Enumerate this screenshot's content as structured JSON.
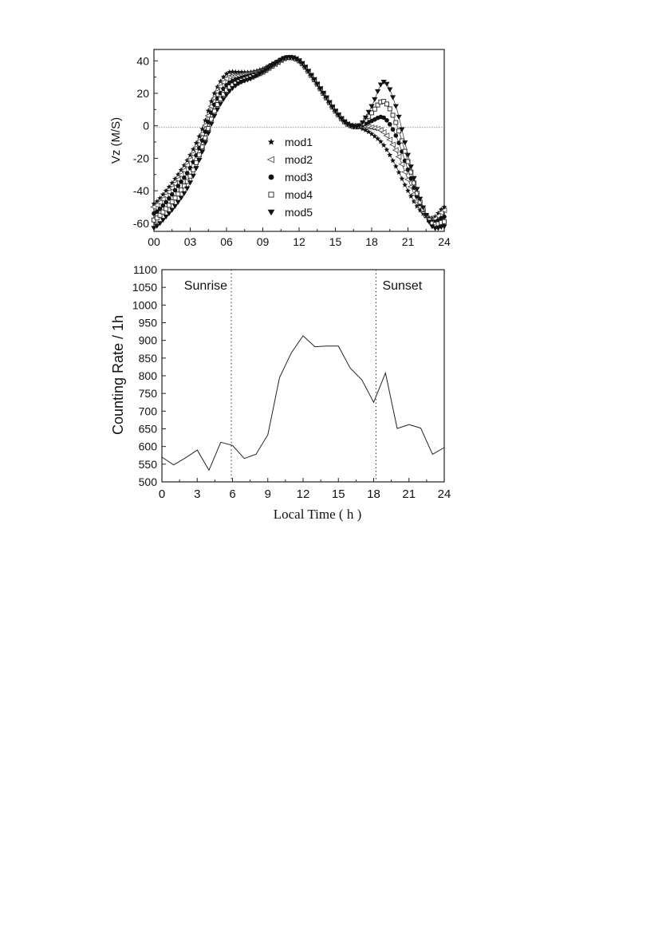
{
  "chart_data": [
    {
      "type": "scatter",
      "ylabel": "Vz (M/S)",
      "xlabel": "",
      "xlim": [
        0,
        24
      ],
      "ylim": [
        -65,
        47
      ],
      "x_ticks": [
        "00",
        "03",
        "06",
        "09",
        "12",
        "15",
        "18",
        "21",
        "24"
      ],
      "x_tick_values": [
        0,
        3,
        6,
        9,
        12,
        15,
        18,
        21,
        24
      ],
      "y_ticks": [
        "-60",
        "-40",
        "-20",
        "0",
        "20",
        "40"
      ],
      "y_tick_values": [
        -60,
        -40,
        -20,
        0,
        20,
        40
      ],
      "zero_line": true,
      "legend_position": "center",
      "x": [
        0,
        1,
        2,
        3,
        4,
        5,
        6,
        7,
        8,
        9,
        10,
        11,
        12,
        13,
        14,
        15,
        16,
        17,
        18,
        19,
        20,
        21,
        22,
        23,
        24
      ],
      "series": [
        {
          "name": "mod1",
          "marker": "star",
          "values": [
            -48,
            -40,
            -30,
            -18,
            -2,
            20,
            32,
            33,
            33,
            35,
            39,
            42,
            40,
            31,
            20,
            9,
            1,
            -1,
            -5,
            -12,
            -25,
            -40,
            -52,
            -57,
            -50
          ]
        },
        {
          "name": "mod2",
          "marker": "triangle-left-open",
          "values": [
            -50,
            -43,
            -33,
            -21,
            -5,
            17,
            29,
            31,
            32,
            34,
            38,
            42,
            40,
            31,
            20,
            9,
            1,
            0,
            -1,
            -4,
            -15,
            -33,
            -50,
            -58,
            -52
          ]
        },
        {
          "name": "mod3",
          "marker": "circle-filled",
          "values": [
            -54,
            -47,
            -37,
            -26,
            -9,
            13,
            25,
            29,
            31,
            33,
            38,
            42,
            40,
            31,
            20,
            9,
            1,
            0,
            3,
            5,
            -6,
            -27,
            -48,
            -59,
            -56
          ]
        },
        {
          "name": "mod4",
          "marker": "square-open",
          "values": [
            -58,
            -51,
            -42,
            -31,
            -13,
            9,
            22,
            27,
            30,
            33,
            38,
            42,
            40,
            31,
            20,
            9,
            1,
            0,
            8,
            15,
            2,
            -22,
            -47,
            -60,
            -59
          ]
        },
        {
          "name": "mod5",
          "marker": "triangle-down-filled",
          "values": [
            -63,
            -56,
            -47,
            -35,
            -16,
            6,
            19,
            26,
            29,
            33,
            38,
            42,
            40,
            31,
            20,
            9,
            1,
            0,
            12,
            27,
            12,
            -18,
            -45,
            -62,
            -62
          ]
        }
      ]
    },
    {
      "type": "line",
      "xlabel": "Local Time ( h )",
      "ylabel": "Counting Rate / 1h",
      "xlim": [
        0,
        24
      ],
      "ylim": [
        500,
        1100
      ],
      "x_ticks": [
        "0",
        "3",
        "6",
        "9",
        "12",
        "15",
        "18",
        "21",
        "24"
      ],
      "x_tick_values": [
        0,
        3,
        6,
        9,
        12,
        15,
        18,
        21,
        24
      ],
      "y_ticks": [
        "500",
        "550",
        "600",
        "650",
        "700",
        "750",
        "800",
        "850",
        "900",
        "950",
        "1000",
        "1050",
        "1100"
      ],
      "y_tick_values": [
        500,
        550,
        600,
        650,
        700,
        750,
        800,
        850,
        900,
        950,
        1000,
        1050,
        1100
      ],
      "x": [
        0,
        1,
        2,
        3,
        4,
        5,
        6,
        7,
        8,
        9,
        10,
        11,
        12,
        13,
        14,
        15,
        16,
        17,
        18,
        19,
        20,
        21,
        22,
        23,
        24
      ],
      "values": [
        570,
        548,
        568,
        590,
        533,
        612,
        603,
        566,
        578,
        633,
        795,
        865,
        913,
        882,
        884,
        884,
        822,
        788,
        725,
        808,
        651,
        662,
        652,
        578,
        597
      ],
      "vlines": [
        {
          "x": 5.9,
          "label": "Sunrise",
          "label_position": "top-left"
        },
        {
          "x": 18.2,
          "label": "Sunset",
          "label_position": "top-right"
        }
      ]
    }
  ]
}
